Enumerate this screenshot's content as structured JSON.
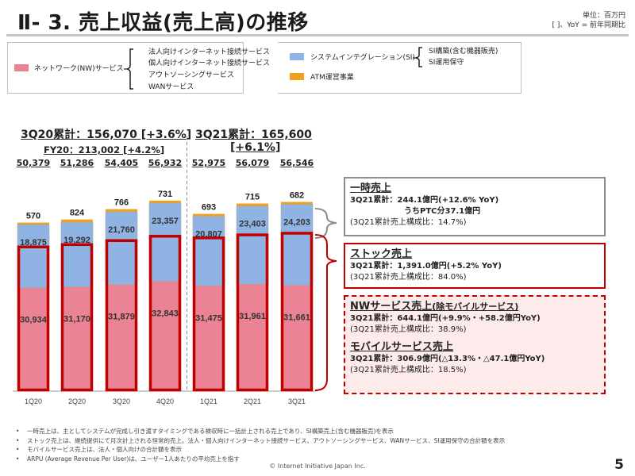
{
  "header": {
    "title": "Ⅱ- 3.  売上収益(売上高)の推移",
    "unit_line1": "単位：百万円",
    "unit_line2": "[ ]、YoY = 前年同期比"
  },
  "legend": {
    "nw": {
      "label": "ネットワーク(NW)サービス",
      "color": "#ea8393",
      "items": [
        "法人向けインターネット接続サービス",
        "個人向けインターネット接続サービス",
        "アウトソーシングサービス",
        "WANサービス"
      ]
    },
    "si": {
      "label": "システムインテグレーション(SI)",
      "color": "#8fb4e3",
      "items": [
        "SI構築(含む機器販売)",
        "SI運用保守"
      ]
    },
    "atm": {
      "label": "ATM運営事業",
      "color": "#f0a020"
    }
  },
  "summary": {
    "fy20_cum": "3Q20累計：156,070 [+3.6%]",
    "fy20_full": "FY20：213,002 [+4.2%]",
    "fy21_cum_line1": "3Q21累計：165,600",
    "fy21_cum_line2": "[+6.1%]",
    "totals": [
      "50,379",
      "51,286",
      "54,405",
      "56,932",
      "52,975",
      "56,079",
      "56,546"
    ]
  },
  "chart_data": {
    "type": "bar",
    "stacked": true,
    "title": "売上収益(売上高)の推移",
    "xlabel": "",
    "ylabel": "百万円",
    "ylim": [
      0,
      60000
    ],
    "grid": false,
    "categories": [
      "1Q20",
      "2Q20",
      "3Q20",
      "4Q20",
      "1Q21",
      "2Q21",
      "3Q21"
    ],
    "series": [
      {
        "name": "ネットワーク(NW)サービス",
        "color": "#ea8393",
        "values": [
          30934,
          31170,
          31879,
          32843,
          31475,
          31961,
          31661
        ],
        "labels": [
          "30,934",
          "31,170",
          "31,879",
          "32,843",
          "31,475",
          "31,961",
          "31,661"
        ]
      },
      {
        "name": "システムインテグレーション(SI)",
        "color": "#8fb4e3",
        "values": [
          18875,
          19292,
          21760,
          23357,
          20807,
          23403,
          24203
        ],
        "labels": [
          "18,875",
          "19,292",
          "21,760",
          "23,357",
          "20,807",
          "23,403",
          "24,203"
        ]
      },
      {
        "name": "ATM運営事業",
        "color": "#f0a020",
        "values": [
          570,
          824,
          766,
          731,
          693,
          715,
          682
        ],
        "labels": [
          "570",
          "824",
          "766",
          "731",
          "693",
          "715",
          "682"
        ]
      }
    ],
    "totals": [
      50379,
      51286,
      54405,
      56932,
      52975,
      56079,
      56546
    ],
    "stock_revenue_approx": [
      43100,
      43800,
      45000,
      46300,
      45800,
      46700,
      47200
    ],
    "annotations": [
      "一時売上",
      "ストック売上"
    ]
  },
  "panels": {
    "onetime": {
      "heading": "一時売上",
      "line1": "3Q21累計：244.1億円(+12.6% YoY)",
      "line2": "うちPTC分37.1億円",
      "line3": "(3Q21累計売上構成比：14.7%)"
    },
    "stock": {
      "heading": "ストック売上",
      "line1": "3Q21累計：1,391.0億円(+5.2% YoY)",
      "line2": "(3Q21累計売上構成比：84.0%)"
    },
    "nw": {
      "heading": "NWサービス売上",
      "heading_sub": "(除モバイルサービス)",
      "line1": "3Q21累計：644.1億円(+9.9%・+58.2億円YoY)",
      "line2": "(3Q21累計売上構成比：38.9%)"
    },
    "mobile": {
      "heading": "モバイルサービス売上",
      "line1": "3Q21累計：306.9億円(△13.3%・△47.1億円YoY)",
      "line2": "(3Q21累計売上構成比：18.5%)"
    }
  },
  "notes": [
    "一時売上は、主としてシステムが完成し引き渡すタイミングである検収時に一括計上される売上であり、SI構築売上(含む機器販売)を表示",
    "ストック売上は、継続提供にて月次計上される恒常的売上。法人・個人向けインターネット接続サービス、アウトソーシングサービス、WANサービス、SI運用保守の合計額を表示",
    "モバイルサービス売上は、法人・個人向けの合計額を表示",
    "ARPU (Average Revenue Per User)は、ユーザー1人あたりの平均売上を指す"
  ],
  "footer": {
    "copyright": "© Internet Initiative Japan Inc.",
    "page": "5"
  }
}
